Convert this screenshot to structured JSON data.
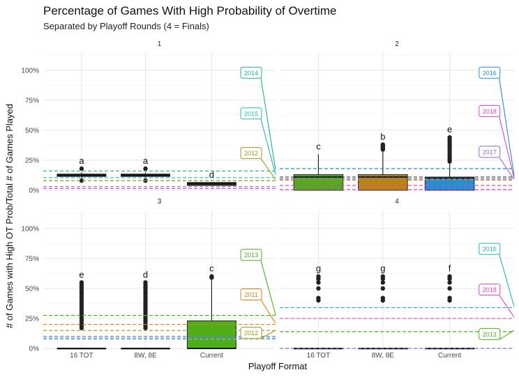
{
  "title": "Percentage of Games With High Probability of Overtime",
  "subtitle": "Separated by Playoff Rounds (4 = Finals)",
  "x_axis_title": "Playoff Format",
  "y_axis_title": "# of Games with High OT Prob/Total # of Games Played",
  "chart_data": {
    "type": "box",
    "categories": [
      "16 TOT",
      "8W, 8E",
      "Current"
    ],
    "y_ticks": [
      "0%",
      "25%",
      "50%",
      "75%",
      "100%"
    ],
    "ylim": [
      0,
      1.15
    ],
    "grid": true,
    "legend": "none",
    "panels": [
      {
        "label": "1",
        "boxes": [
          {
            "cat": "16 TOT",
            "q1": 0.115,
            "median": 0.125,
            "q3": 0.135,
            "wlo": 0.1,
            "whi": 0.15,
            "outliers": [
              0.08,
              0.18
            ],
            "fill": "#333333",
            "letter": "a"
          },
          {
            "cat": "8W, 8E",
            "q1": 0.115,
            "median": 0.125,
            "q3": 0.135,
            "wlo": 0.1,
            "whi": 0.15,
            "outliers": [
              0.08,
              0.18
            ],
            "fill": "#333333",
            "letter": "a"
          },
          {
            "cat": "Current",
            "q1": 0.04,
            "median": 0.055,
            "q3": 0.065,
            "wlo": 0.04,
            "whi": 0.065,
            "outliers": [],
            "fill": "#333333",
            "letter": "d"
          }
        ],
        "hlines": [
          {
            "y": 0.16,
            "color": "#1fb38a"
          },
          {
            "y": 0.105,
            "color": "#22b5bf"
          },
          {
            "y": 0.08,
            "color": "#9a9a10"
          },
          {
            "y": 0.03,
            "color": "#8a6bd6"
          },
          {
            "y": 0.015,
            "color": "#e040c8"
          }
        ],
        "callouts": [
          {
            "text": "2014",
            "y_label": 0.98,
            "y_line": 0.17,
            "color": "#1fb38a"
          },
          {
            "text": "2015",
            "y_label": 0.64,
            "y_line": 0.13,
            "color": "#22b5bf"
          },
          {
            "text": "2012",
            "y_label": 0.31,
            "y_line": 0.09,
            "color": "#9a9a10"
          }
        ]
      },
      {
        "label": "2",
        "boxes": [
          {
            "cat": "16 TOT",
            "q1": 0.0,
            "median": 0.11,
            "q3": 0.13,
            "wlo": 0.0,
            "whi": 0.3,
            "outliers": [],
            "fill": "#4caf1a",
            "letter": "c"
          },
          {
            "cat": "8W, 8E",
            "q1": 0.0,
            "median": 0.11,
            "q3": 0.13,
            "wlo": 0.0,
            "whi": 0.33,
            "outliers": [
              0.34,
              0.35,
              0.36,
              0.37,
              0.38
            ],
            "fill": "#b8860b",
            "letter": "b"
          },
          {
            "cat": "Current",
            "q1": 0.0,
            "median": 0.1,
            "q3": 0.11,
            "wlo": 0.0,
            "whi": 0.22,
            "outliers": [
              0.24,
              0.26,
              0.28,
              0.3,
              0.32,
              0.34,
              0.36,
              0.38,
              0.4,
              0.42,
              0.44
            ],
            "fill": "#1e90d6",
            "letter": "e"
          }
        ],
        "hlines": [
          {
            "y": 0.18,
            "color": "#1e90d6"
          },
          {
            "y": 0.11,
            "color": "#333333"
          },
          {
            "y": 0.095,
            "color": "#8a6bd6"
          },
          {
            "y": 0.085,
            "color": "#b8860b"
          },
          {
            "y": 0.04,
            "color": "#e040c8"
          },
          {
            "y": 0.005,
            "color": "#e040c8"
          }
        ],
        "callouts": [
          {
            "text": "2016",
            "y_label": 0.98,
            "y_line": 0.12,
            "color": "#1e90d6"
          },
          {
            "text": "2018",
            "y_label": 0.66,
            "y_line": 0.1,
            "color": "#e040c8"
          },
          {
            "text": "2017",
            "y_label": 0.32,
            "y_line": 0.09,
            "color": "#8a6bd6"
          }
        ]
      },
      {
        "label": "3",
        "boxes": [
          {
            "cat": "16 TOT",
            "q1": 0.0,
            "median": 0.0,
            "q3": 0.0,
            "wlo": 0.0,
            "whi": 0.0,
            "outliers": [
              0.17,
              0.19,
              0.21,
              0.23,
              0.25,
              0.27,
              0.29,
              0.31,
              0.33,
              0.35,
              0.37,
              0.39,
              0.41,
              0.43,
              0.45,
              0.47,
              0.49,
              0.51,
              0.53,
              0.55
            ],
            "fill": "#333333",
            "letter": "e"
          },
          {
            "cat": "8W, 8E",
            "q1": 0.0,
            "median": 0.0,
            "q3": 0.0,
            "wlo": 0.0,
            "whi": 0.0,
            "outliers": [
              0.17,
              0.19,
              0.21,
              0.23,
              0.25,
              0.27,
              0.29,
              0.31,
              0.33,
              0.35,
              0.37,
              0.39,
              0.41,
              0.43,
              0.45,
              0.47,
              0.49,
              0.51,
              0.53,
              0.55
            ],
            "fill": "#333333",
            "letter": "d"
          },
          {
            "cat": "Current",
            "q1": 0.0,
            "median": 0.0,
            "q3": 0.23,
            "wlo": 0.0,
            "whi": 0.57,
            "outliers": [
              0.59,
              0.6
            ],
            "fill": "#4caf1a",
            "letter": "c"
          }
        ],
        "hlines": [
          {
            "y": 0.275,
            "color": "#4caf1a"
          },
          {
            "y": 0.2,
            "color": "#e08010"
          },
          {
            "y": 0.15,
            "color": "#9a9a10"
          },
          {
            "y": 0.1,
            "color": "#8a6bd6"
          },
          {
            "y": 0.085,
            "color": "#22b5bf"
          },
          {
            "y": 0.075,
            "color": "#aaaaaa"
          }
        ],
        "callouts": [
          {
            "text": "2013",
            "y_label": 0.78,
            "y_line": 0.28,
            "color": "#4caf1a"
          },
          {
            "text": "2011",
            "y_label": 0.45,
            "y_line": 0.21,
            "color": "#e08010"
          },
          {
            "text": "2012",
            "y_label": 0.13,
            "y_line": 0.15,
            "color": "#9a9a10"
          }
        ]
      },
      {
        "label": "4",
        "boxes": [
          {
            "cat": "16 TOT",
            "q1": 0.0,
            "median": 0.0,
            "q3": 0.0,
            "wlo": 0.0,
            "whi": 0.0,
            "outliers": [
              0.4,
              0.42,
              0.5,
              0.55,
              0.58,
              0.6
            ],
            "fill": "#333333",
            "letter": "g"
          },
          {
            "cat": "8W, 8E",
            "q1": 0.0,
            "median": 0.0,
            "q3": 0.0,
            "wlo": 0.0,
            "whi": 0.0,
            "outliers": [
              0.4,
              0.42,
              0.5,
              0.55,
              0.58,
              0.6
            ],
            "fill": "#333333",
            "letter": "g"
          },
          {
            "cat": "Current",
            "q1": 0.0,
            "median": 0.0,
            "q3": 0.0,
            "wlo": 0.0,
            "whi": 0.0,
            "outliers": [
              0.4,
              0.42,
              0.5,
              0.55,
              0.58,
              0.6
            ],
            "fill": "#333333",
            "letter": "f"
          }
        ],
        "hlines": [
          {
            "y": 0.34,
            "color": "#22b5bf"
          },
          {
            "y": 0.25,
            "color": "#e040c8"
          },
          {
            "y": 0.14,
            "color": "#4caf1a"
          },
          {
            "y": 0.0,
            "color": "#8a6bd6"
          }
        ],
        "callouts": [
          {
            "text": "2015",
            "y_label": 0.83,
            "y_line": 0.35,
            "color": "#22b5bf"
          },
          {
            "text": "2018",
            "y_label": 0.49,
            "y_line": 0.26,
            "color": "#e040c8"
          },
          {
            "text": "2013",
            "y_label": 0.12,
            "y_line": 0.15,
            "color": "#4caf1a"
          }
        ]
      }
    ]
  }
}
